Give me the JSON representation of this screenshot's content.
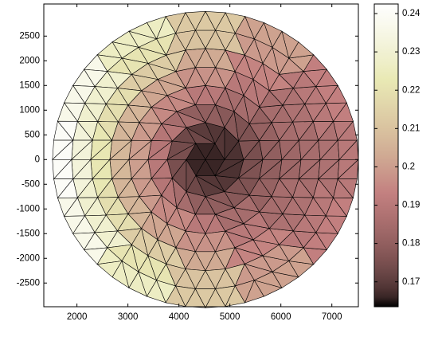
{
  "chart_data": {
    "type": "trimesh",
    "colormap": "pink",
    "center": [
      4520,
      0
    ],
    "radius": 3000,
    "values": [
      [
        0.166,
        0.166,
        0.166,
        0.166,
        0.166,
        0.166,
        0.166,
        0.166,
        0.166,
        0.166,
        0.166,
        0.166
      ],
      [
        0.168,
        0.168,
        0.169,
        0.17,
        0.173,
        0.174,
        0.175,
        0.174,
        0.173,
        0.17,
        0.169,
        0.168
      ],
      [
        0.175,
        0.176,
        0.178,
        0.18,
        0.185,
        0.189,
        0.19,
        0.189,
        0.185,
        0.18,
        0.178,
        0.176
      ],
      [
        0.18,
        0.181,
        0.185,
        0.19,
        0.195,
        0.199,
        0.2,
        0.199,
        0.195,
        0.19,
        0.185,
        0.181
      ],
      [
        0.183,
        0.185,
        0.19,
        0.197,
        0.202,
        0.206,
        0.207,
        0.206,
        0.202,
        0.197,
        0.19,
        0.185
      ],
      [
        0.185,
        0.187,
        0.194,
        0.203,
        0.213,
        0.219,
        0.222,
        0.219,
        0.213,
        0.203,
        0.194,
        0.187
      ],
      [
        0.187,
        0.19,
        0.199,
        0.21,
        0.221,
        0.229,
        0.232,
        0.229,
        0.221,
        0.21,
        0.199,
        0.19
      ],
      [
        0.19,
        0.193,
        0.201,
        0.212,
        0.226,
        0.236,
        0.24,
        0.236,
        0.226,
        0.212,
        0.201,
        0.193
      ]
    ],
    "xlim": [
      1350,
      7520
    ],
    "ylim": [
      -2980,
      3150
    ],
    "xticks": [
      2000,
      3000,
      4000,
      5000,
      6000,
      7000
    ],
    "yticks": [
      -2500,
      -2000,
      -1500,
      -1000,
      -500,
      0,
      500,
      1000,
      1500,
      2000,
      2500
    ],
    "clim": [
      0.1635,
      0.2425
    ],
    "cticks": [
      0.17,
      0.18,
      0.19,
      0.2,
      0.21,
      0.22,
      0.23,
      0.24
    ]
  }
}
